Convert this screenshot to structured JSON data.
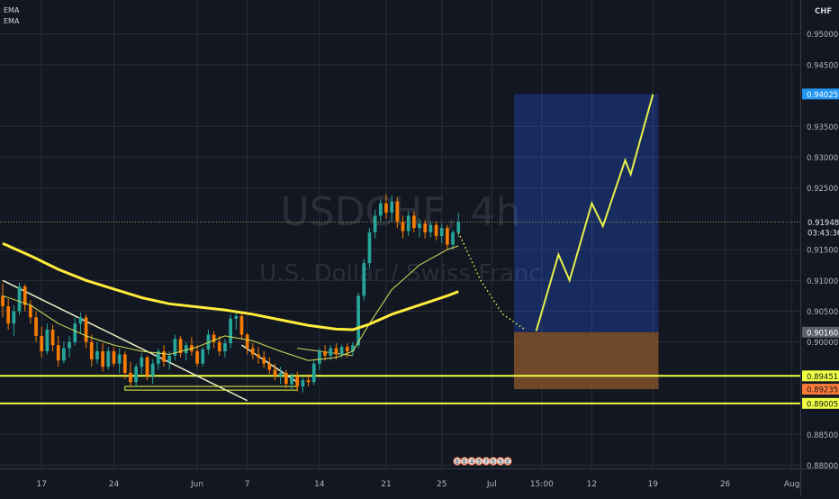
{
  "legend": {
    "ema_1": "EMA",
    "ema_2": "EMA"
  },
  "watermark": {
    "symbol": "USDCHF, 4h",
    "description": "U.S. Dollar / Swiss Franc"
  },
  "colors": {
    "background": "#131722",
    "grid": "#2a2e39",
    "candle_up": "#26a69a",
    "candle_down": "#f57c00",
    "ema_slow": "#ffeb3b",
    "ema_fast": "#d4e157",
    "projection": "#e6f04a",
    "profit_zone": "#2962ff",
    "stop_zone": "#8d5a2b",
    "horizontal_level": "#eeff41",
    "last_price_tag": "#26a69a",
    "entry_tag": "#5d606b",
    "axis_text": "#b2b5be"
  },
  "chart_data": {
    "type": "candlestick",
    "symbol": "USDCHF",
    "timeframe": "4h",
    "currency": "CHF",
    "ylim": [
      0.8795,
      0.9555
    ],
    "price_axis_ticks": [
      "0.95000",
      "0.94500",
      "0.94025",
      "0.93500",
      "0.93000",
      "0.92500",
      "0.91948",
      "0.91500",
      "0.91000",
      "0.90500",
      "0.90160",
      "0.90000",
      "0.89451",
      "0.89235",
      "0.89005",
      "0.88500",
      "0.88000"
    ],
    "time_axis_labels": [
      "17",
      "24",
      "Jun",
      "7",
      "14",
      "21",
      "25",
      "Jul",
      "15:00",
      "12",
      "19",
      "26",
      "Aug"
    ],
    "last_price": {
      "value": "0.91948",
      "countdown": "03:43:36"
    },
    "tagged_levels": [
      {
        "value": "0.94025",
        "role": "target"
      },
      {
        "value": "0.90160",
        "role": "entry"
      },
      {
        "value": "0.89451",
        "role": "support"
      },
      {
        "value": "0.89235",
        "role": "stop"
      },
      {
        "value": "0.89005",
        "role": "support"
      }
    ],
    "candles": [
      [
        0.9075,
        0.9095,
        0.904,
        0.9058
      ],
      [
        0.9058,
        0.907,
        0.902,
        0.903
      ],
      [
        0.903,
        0.906,
        0.901,
        0.905
      ],
      [
        0.905,
        0.9096,
        0.9044,
        0.909
      ],
      [
        0.909,
        0.9094,
        0.905,
        0.906
      ],
      [
        0.906,
        0.9068,
        0.903,
        0.904
      ],
      [
        0.904,
        0.905,
        0.9,
        0.901
      ],
      [
        0.901,
        0.9025,
        0.8975,
        0.8985
      ],
      [
        0.8985,
        0.903,
        0.898,
        0.902
      ],
      [
        0.902,
        0.9028,
        0.8985,
        0.8995
      ],
      [
        0.8995,
        0.901,
        0.896,
        0.897
      ],
      [
        0.897,
        0.9,
        0.8965,
        0.899
      ],
      [
        0.899,
        0.901,
        0.8975,
        0.9
      ],
      [
        0.9,
        0.904,
        0.8995,
        0.903
      ],
      [
        0.903,
        0.9048,
        0.9015,
        0.904
      ],
      [
        0.904,
        0.9045,
        0.899,
        0.9
      ],
      [
        0.9,
        0.9012,
        0.896,
        0.8972
      ],
      [
        0.8972,
        0.9,
        0.8965,
        0.8985
      ],
      [
        0.8985,
        0.8998,
        0.8952,
        0.896
      ],
      [
        0.896,
        0.8992,
        0.8955,
        0.8985
      ],
      [
        0.8985,
        0.8992,
        0.896,
        0.8965
      ],
      [
        0.8965,
        0.899,
        0.895,
        0.898
      ],
      [
        0.898,
        0.8985,
        0.894,
        0.895
      ],
      [
        0.895,
        0.8968,
        0.8928,
        0.8935
      ],
      [
        0.8935,
        0.8965,
        0.8928,
        0.896
      ],
      [
        0.896,
        0.8982,
        0.8948,
        0.8975
      ],
      [
        0.8975,
        0.8978,
        0.8938,
        0.8945
      ],
      [
        0.8945,
        0.8972,
        0.8932,
        0.8965
      ],
      [
        0.8965,
        0.899,
        0.8955,
        0.8985
      ],
      [
        0.8985,
        0.8995,
        0.896,
        0.8968
      ],
      [
        0.8968,
        0.8985,
        0.8955,
        0.8978
      ],
      [
        0.8978,
        0.9012,
        0.897,
        0.9005
      ],
      [
        0.9005,
        0.901,
        0.8975,
        0.8982
      ],
      [
        0.8982,
        0.9,
        0.897,
        0.8995
      ],
      [
        0.8995,
        0.9008,
        0.8978,
        0.8985
      ],
      [
        0.8985,
        0.8995,
        0.896,
        0.8965
      ],
      [
        0.8965,
        0.8992,
        0.896,
        0.8988
      ],
      [
        0.8988,
        0.902,
        0.898,
        0.9012
      ],
      [
        0.9012,
        0.9018,
        0.899,
        0.9
      ],
      [
        0.9,
        0.901,
        0.8978,
        0.8985
      ],
      [
        0.8985,
        0.9005,
        0.8975,
        0.8998
      ],
      [
        0.8998,
        0.9045,
        0.899,
        0.9038
      ],
      [
        0.9038,
        0.905,
        0.902,
        0.9042
      ],
      [
        0.9042,
        0.9048,
        0.9005,
        0.9012
      ],
      [
        0.9012,
        0.9015,
        0.898,
        0.899
      ],
      [
        0.899,
        0.8998,
        0.8972,
        0.898
      ],
      [
        0.898,
        0.8992,
        0.8965,
        0.8975
      ],
      [
        0.8975,
        0.8985,
        0.8958,
        0.8965
      ],
      [
        0.8965,
        0.8975,
        0.8948,
        0.8955
      ],
      [
        0.8955,
        0.8965,
        0.8938,
        0.8945
      ],
      [
        0.8945,
        0.896,
        0.8932,
        0.895
      ],
      [
        0.895,
        0.8955,
        0.8925,
        0.8932
      ],
      [
        0.8932,
        0.895,
        0.8922,
        0.8945
      ],
      [
        0.8945,
        0.8952,
        0.892,
        0.8928
      ],
      [
        0.8928,
        0.8942,
        0.8918,
        0.8938
      ],
      [
        0.8938,
        0.8948,
        0.8928,
        0.8935
      ],
      [
        0.8935,
        0.897,
        0.893,
        0.8965
      ],
      [
        0.8965,
        0.899,
        0.8955,
        0.8985
      ],
      [
        0.8985,
        0.8995,
        0.897,
        0.8978
      ],
      [
        0.8978,
        0.8995,
        0.897,
        0.899
      ],
      [
        0.899,
        0.8998,
        0.8972,
        0.898
      ],
      [
        0.898,
        0.8996,
        0.8974,
        0.8992
      ],
      [
        0.8992,
        0.8998,
        0.8975,
        0.8985
      ],
      [
        0.8985,
        0.9,
        0.8978,
        0.8995
      ],
      [
        0.8995,
        0.908,
        0.899,
        0.9075
      ],
      [
        0.9075,
        0.9135,
        0.9068,
        0.9128
      ],
      [
        0.9128,
        0.9185,
        0.912,
        0.9178
      ],
      [
        0.9178,
        0.9215,
        0.9168,
        0.9205
      ],
      [
        0.9205,
        0.9232,
        0.9195,
        0.9225
      ],
      [
        0.9225,
        0.924,
        0.92,
        0.921
      ],
      [
        0.921,
        0.9238,
        0.9195,
        0.9228
      ],
      [
        0.9228,
        0.9235,
        0.9185,
        0.9195
      ],
      [
        0.9195,
        0.9205,
        0.9168,
        0.918
      ],
      [
        0.918,
        0.9212,
        0.9172,
        0.9205
      ],
      [
        0.9205,
        0.9212,
        0.9178,
        0.9185
      ],
      [
        0.9185,
        0.92,
        0.917,
        0.9192
      ],
      [
        0.9192,
        0.9198,
        0.9168,
        0.9178
      ],
      [
        0.9178,
        0.9196,
        0.917,
        0.919
      ],
      [
        0.919,
        0.9195,
        0.9165,
        0.9172
      ],
      [
        0.9172,
        0.9192,
        0.916,
        0.9185
      ],
      [
        0.9185,
        0.919,
        0.915,
        0.9158
      ],
      [
        0.9158,
        0.9182,
        0.915,
        0.9178
      ],
      [
        0.9178,
        0.921,
        0.917,
        0.9195
      ]
    ],
    "ema_slow": {
      "times": [
        0,
        5,
        10,
        15,
        20,
        25,
        30,
        35,
        40,
        45,
        50,
        55,
        60,
        63,
        66,
        70,
        75,
        80,
        82
      ],
      "values": [
        0.916,
        0.914,
        0.9118,
        0.91,
        0.9086,
        0.9072,
        0.9062,
        0.9057,
        0.9052,
        0.9045,
        0.9036,
        0.9027,
        0.9021,
        0.902,
        0.9029,
        0.9045,
        0.906,
        0.9075,
        0.9082
      ]
    },
    "ema_fast": {
      "times": [
        0,
        5,
        10,
        15,
        20,
        25,
        30,
        35,
        40,
        45,
        50,
        55,
        60,
        63,
        66,
        70,
        75,
        80,
        82
      ],
      "values": [
        0.9075,
        0.906,
        0.903,
        0.901,
        0.8995,
        0.8985,
        0.898,
        0.8992,
        0.901,
        0.9002,
        0.8985,
        0.897,
        0.8975,
        0.8985,
        0.903,
        0.9085,
        0.9125,
        0.915,
        0.9156
      ]
    },
    "drawings": {
      "trendline_1": [
        [
          0,
          0.91
        ],
        [
          44,
          0.8905
        ]
      ],
      "trendline_2": [
        [
          43,
          0.8995
        ],
        [
          53,
          0.8935
        ]
      ],
      "channel_line": [
        [
          53,
          0.899
        ],
        [
          63,
          0.8978
        ]
      ],
      "support_box": {
        "t_from": 22,
        "t_to": 53,
        "top": 0.8928,
        "bottom": 0.8922
      },
      "projected_decline": [
        [
          82,
          0.9178
        ],
        [
          86,
          0.91
        ],
        [
          90,
          0.9045
        ],
        [
          94,
          0.902
        ]
      ],
      "projected_rally": [
        [
          96,
          0.9018
        ],
        [
          100,
          0.9142
        ],
        [
          102,
          0.91
        ],
        [
          106,
          0.9225
        ],
        [
          108,
          0.9188
        ],
        [
          112,
          0.9295
        ],
        [
          113,
          0.9272
        ],
        [
          117,
          0.9402
        ]
      ],
      "long_position": {
        "t_from": 92,
        "t_to": 118,
        "entry": 0.9016,
        "target": 0.94025,
        "stop": 0.89235
      }
    },
    "levels": [
      0.89451,
      0.89005
    ],
    "dotted_price_line": 0.91948,
    "x_label_times": [
      7,
      20,
      35,
      44,
      57,
      69,
      79,
      88,
      97,
      106,
      117,
      130,
      142
    ],
    "x_range": [
      0,
      144
    ]
  },
  "footer": {
    "event_icons": [
      "E",
      "E",
      "4",
      "3",
      "7",
      "5",
      "5",
      "E"
    ]
  }
}
